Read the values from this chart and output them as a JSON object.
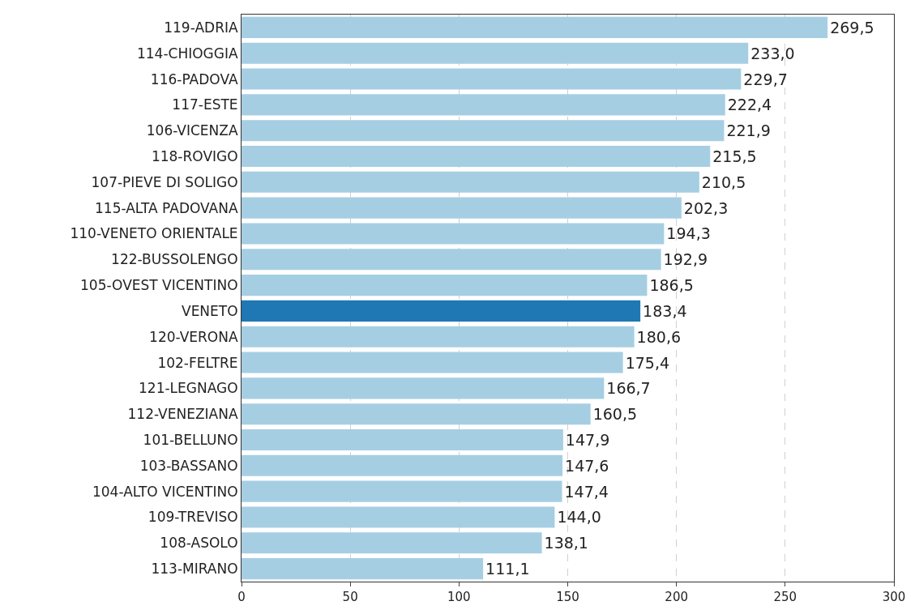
{
  "chart_data": {
    "type": "bar",
    "orientation": "horizontal",
    "categories": [
      "119-ADRIA",
      "114-CHIOGGIA",
      "116-PADOVA",
      "117-ESTE",
      "106-VICENZA",
      "118-ROVIGO",
      "107-PIEVE DI SOLIGO",
      "115-ALTA PADOVANA",
      "110-VENETO ORIENTALE",
      "122-BUSSOLENGO",
      "105-OVEST VICENTINO",
      "VENETO",
      "120-VERONA",
      "102-FELTRE",
      "121-LEGNAGO",
      "112-VENEZIANA",
      "101-BELLUNO",
      "103-BASSANO",
      "104-ALTO VICENTINO",
      "109-TREVISO",
      "108-ASOLO",
      "113-MIRANO"
    ],
    "values": [
      269.5,
      233.0,
      229.7,
      222.4,
      221.9,
      215.5,
      210.5,
      202.3,
      194.3,
      192.9,
      186.5,
      183.4,
      180.6,
      175.4,
      166.7,
      160.5,
      147.9,
      147.6,
      147.4,
      144.0,
      138.1,
      111.1
    ],
    "value_labels": [
      "269,5",
      "233,0",
      "229,7",
      "222,4",
      "221,9",
      "215,5",
      "210,5",
      "202,3",
      "194,3",
      "192,9",
      "186,5",
      "183,4",
      "180,6",
      "175,4",
      "166,7",
      "160,5",
      "147,9",
      "147,6",
      "147,4",
      "144,0",
      "138,1",
      "111,1"
    ],
    "colors": [
      "#a6cee3",
      "#a6cee3",
      "#a6cee3",
      "#a6cee3",
      "#a6cee3",
      "#a6cee3",
      "#a6cee3",
      "#a6cee3",
      "#a6cee3",
      "#a6cee3",
      "#a6cee3",
      "#1f78b4",
      "#a6cee3",
      "#a6cee3",
      "#a6cee3",
      "#a6cee3",
      "#a6cee3",
      "#a6cee3",
      "#a6cee3",
      "#a6cee3",
      "#a6cee3",
      "#a6cee3"
    ],
    "xlim": [
      0,
      300
    ],
    "xticks": [
      0,
      50,
      100,
      150,
      200,
      250,
      300
    ],
    "grid": "x",
    "legend": false
  }
}
